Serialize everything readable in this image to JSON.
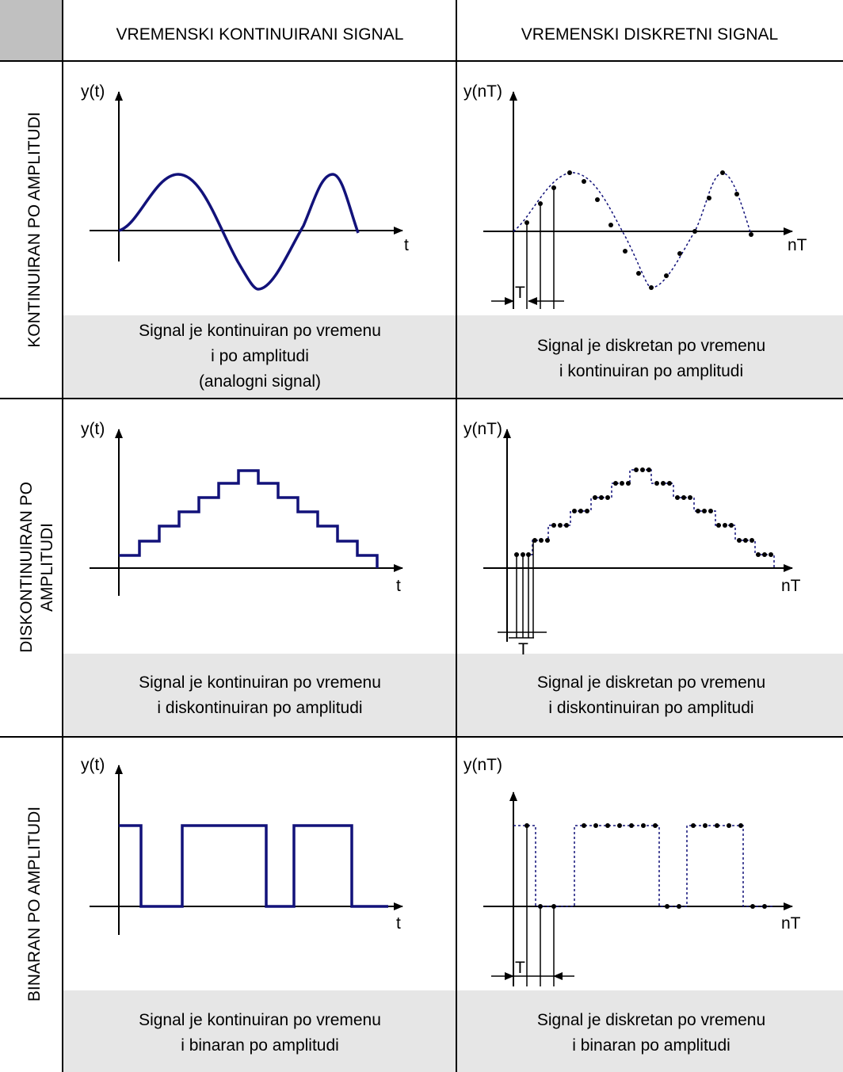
{
  "colors": {
    "signal": "#12127a",
    "grid": "#000000",
    "caption_bg": "#e6e6e6",
    "corner_bg": "#c0c0c0"
  },
  "columns": [
    "VREMENSKI KONTINUIRANI SIGNAL",
    "VREMENSKI DISKRETNI SIGNAL"
  ],
  "rows": [
    {
      "label_lines": [
        "KONTINUIRAN PO AMPLITUDI"
      ]
    },
    {
      "label_lines": [
        "DISKONTINUIRAN PO",
        "AMPLITUDI"
      ]
    },
    {
      "label_lines": [
        "BINARAN PO AMPLITUDI"
      ]
    }
  ],
  "axes": {
    "y_continuous": "y(t)",
    "x_continuous": "t",
    "y_discrete": "y(nT)",
    "x_discrete": "nT",
    "period": "T"
  },
  "captions": [
    [
      "Signal je kontinuiran po vremenu",
      "i po amplitudi",
      "(analogni signal)"
    ],
    [
      "Signal je diskretan po vremenu",
      "i kontinuiran po amplitudi"
    ],
    [
      "Signal je kontinuiran po vremenu",
      "i diskontinuiran po amplitudi"
    ],
    [
      "Signal je diskretan po vremenu",
      "i diskontinuiran po amplitudi"
    ],
    [
      "Signal je kontinuiran po vremenu",
      "i binaran po amplitudi"
    ],
    [
      "Signal je diskretan po vremenu",
      "i binaran po amplitudi"
    ]
  ]
}
